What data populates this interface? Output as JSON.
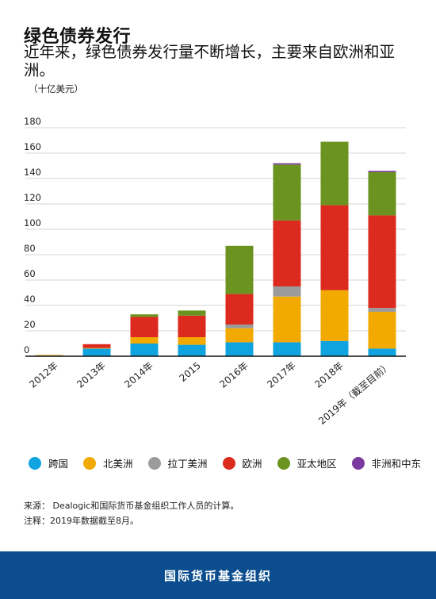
{
  "header": {
    "title": "绿色债券发行",
    "subtitle": "近年来，绿色债券发行量不断增长，主要来自欧洲和亚洲。",
    "unit": "（十亿美元）"
  },
  "chart_data": {
    "type": "bar",
    "stacked": true,
    "categories": [
      "2012年",
      "2013年",
      "2014年",
      "2015",
      "2016年",
      "2017年",
      "2018年",
      "2019年（截至目前）"
    ],
    "series": [
      {
        "name": "跨国",
        "color": "#0fa3e0",
        "values": [
          0.5,
          6,
          10,
          9,
          11,
          11,
          12,
          6
        ]
      },
      {
        "name": "北美洲",
        "color": "#f2a900",
        "values": [
          0.5,
          0.5,
          5,
          6,
          11,
          36,
          40,
          29
        ]
      },
      {
        "name": "拉丁美洲",
        "color": "#9b9b9b",
        "values": [
          0,
          0,
          0,
          0,
          3,
          8,
          0,
          3
        ]
      },
      {
        "name": "欧洲",
        "color": "#dc2a1e",
        "values": [
          0,
          3,
          16,
          17,
          24,
          52,
          67,
          73
        ]
      },
      {
        "name": "亚太地区",
        "color": "#6b931f",
        "values": [
          0,
          0,
          2,
          4,
          38,
          44,
          50,
          34
        ]
      },
      {
        "name": "非洲和中东",
        "color": "#7b3aa0",
        "values": [
          0,
          0,
          0,
          0,
          0,
          1,
          0,
          1
        ]
      }
    ],
    "yticks": [
      0,
      20,
      40,
      60,
      80,
      100,
      120,
      140,
      160,
      180
    ],
    "ylim": [
      0,
      180
    ],
    "grid": true,
    "legend_position": "bottom",
    "xlabel": "",
    "ylabel": ""
  },
  "notes": {
    "source": "来源： Dealogic和国际货币基金组织工作人员的计算。",
    "note": "注释：2019年数据截至8月。"
  },
  "footer": {
    "org": "国际货币基金组织"
  }
}
